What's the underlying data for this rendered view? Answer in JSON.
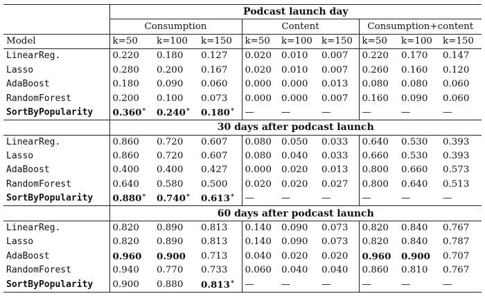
{
  "table": {
    "sections": [
      {
        "title": "Podcast launch day",
        "group_headers": [
          "Consumption",
          "Content",
          "Consumption+content"
        ],
        "model_header": "Model",
        "k_headers": [
          "k=50",
          "k=100",
          "k=150",
          "k=50",
          "k=100",
          "k=150",
          "k=50",
          "k=100",
          "k=150"
        ],
        "rows": [
          {
            "model": "LinearReg.",
            "bold_model": false,
            "cells": [
              {
                "v": "0.220"
              },
              {
                "v": "0.180"
              },
              {
                "v": "0.127"
              },
              {
                "v": "0.020"
              },
              {
                "v": "0.010"
              },
              {
                "v": "0.007"
              },
              {
                "v": "0.220"
              },
              {
                "v": "0.170"
              },
              {
                "v": "0.147"
              }
            ]
          },
          {
            "model": "Lasso",
            "bold_model": false,
            "cells": [
              {
                "v": "0.280"
              },
              {
                "v": "0.200"
              },
              {
                "v": "0.167"
              },
              {
                "v": "0.020"
              },
              {
                "v": "0.010"
              },
              {
                "v": "0.007"
              },
              {
                "v": "0.260"
              },
              {
                "v": "0.160"
              },
              {
                "v": "0.120"
              }
            ]
          },
          {
            "model": "AdaBoost",
            "bold_model": false,
            "cells": [
              {
                "v": "0.180"
              },
              {
                "v": "0.090"
              },
              {
                "v": "0.060"
              },
              {
                "v": "0.000"
              },
              {
                "v": "0.000"
              },
              {
                "v": "0.013"
              },
              {
                "v": "0.080"
              },
              {
                "v": "0.080"
              },
              {
                "v": "0.060"
              }
            ]
          },
          {
            "model": "RandomForest",
            "bold_model": false,
            "cells": [
              {
                "v": "0.200"
              },
              {
                "v": "0.100"
              },
              {
                "v": "0.073"
              },
              {
                "v": "0.000"
              },
              {
                "v": "0.000"
              },
              {
                "v": "0.007"
              },
              {
                "v": "0.160"
              },
              {
                "v": "0.090"
              },
              {
                "v": "0.060"
              }
            ]
          },
          {
            "model": "SortByPopularity",
            "bold_model": true,
            "cells": [
              {
                "v": "0.360",
                "b": true,
                "s": "*"
              },
              {
                "v": "0.240",
                "b": true,
                "s": "*"
              },
              {
                "v": "0.180",
                "b": true,
                "s": "*"
              },
              {
                "v": "—"
              },
              {
                "v": "—"
              },
              {
                "v": "—"
              },
              {
                "v": "—"
              },
              {
                "v": "—"
              },
              {
                "v": "—"
              }
            ]
          }
        ]
      },
      {
        "title": "30 days after podcast launch",
        "rows": [
          {
            "model": "LinearReg.",
            "bold_model": false,
            "cells": [
              {
                "v": "0.860"
              },
              {
                "v": "0.720"
              },
              {
                "v": "0.607"
              },
              {
                "v": "0.080"
              },
              {
                "v": "0.050"
              },
              {
                "v": "0.033"
              },
              {
                "v": "0.640"
              },
              {
                "v": "0.530"
              },
              {
                "v": "0.393"
              }
            ]
          },
          {
            "model": "Lasso",
            "bold_model": false,
            "cells": [
              {
                "v": "0.860"
              },
              {
                "v": "0.720"
              },
              {
                "v": "0.607"
              },
              {
                "v": "0.080"
              },
              {
                "v": "0.040"
              },
              {
                "v": "0.033"
              },
              {
                "v": "0.660"
              },
              {
                "v": "0.530"
              },
              {
                "v": "0.393"
              }
            ]
          },
          {
            "model": "AdaBoost",
            "bold_model": false,
            "cells": [
              {
                "v": "0.400"
              },
              {
                "v": "0.400"
              },
              {
                "v": "0.427"
              },
              {
                "v": "0.000"
              },
              {
                "v": "0.020"
              },
              {
                "v": "0.013"
              },
              {
                "v": "0.800"
              },
              {
                "v": "0.660"
              },
              {
                "v": "0.573"
              }
            ]
          },
          {
            "model": "RandomForest",
            "bold_model": false,
            "cells": [
              {
                "v": "0.640"
              },
              {
                "v": "0.580"
              },
              {
                "v": "0.500"
              },
              {
                "v": "0.020"
              },
              {
                "v": "0.020"
              },
              {
                "v": "0.027"
              },
              {
                "v": "0.800"
              },
              {
                "v": "0.640"
              },
              {
                "v": "0.513"
              }
            ]
          },
          {
            "model": "SortByPopularity",
            "bold_model": true,
            "cells": [
              {
                "v": "0.880",
                "b": true,
                "s": "*"
              },
              {
                "v": "0.740",
                "b": true,
                "s": "*"
              },
              {
                "v": "0.613",
                "b": true,
                "s": "*"
              },
              {
                "v": "—"
              },
              {
                "v": "—"
              },
              {
                "v": "—"
              },
              {
                "v": "—"
              },
              {
                "v": "—"
              },
              {
                "v": "—"
              }
            ]
          }
        ]
      },
      {
        "title": "60 days after podcast launch",
        "rows": [
          {
            "model": "LinearReg.",
            "bold_model": false,
            "cells": [
              {
                "v": "0.820"
              },
              {
                "v": "0.890"
              },
              {
                "v": "0.813"
              },
              {
                "v": "0.140"
              },
              {
                "v": "0.090"
              },
              {
                "v": "0.073"
              },
              {
                "v": "0.820"
              },
              {
                "v": "0.840"
              },
              {
                "v": "0.767"
              }
            ]
          },
          {
            "model": "Lasso",
            "bold_model": false,
            "cells": [
              {
                "v": "0.820"
              },
              {
                "v": "0.890"
              },
              {
                "v": "0.813"
              },
              {
                "v": "0.140"
              },
              {
                "v": "0.090"
              },
              {
                "v": "0.073"
              },
              {
                "v": "0.820"
              },
              {
                "v": "0.840"
              },
              {
                "v": "0.787"
              }
            ]
          },
          {
            "model": "AdaBoost",
            "bold_model": false,
            "cells": [
              {
                "v": "0.960",
                "b": true
              },
              {
                "v": "0.900",
                "b": true
              },
              {
                "v": "0.713"
              },
              {
                "v": "0.040"
              },
              {
                "v": "0.020"
              },
              {
                "v": "0.020"
              },
              {
                "v": "0.960",
                "b": true
              },
              {
                "v": "0.900",
                "b": true
              },
              {
                "v": "0.707"
              }
            ]
          },
          {
            "model": "RandomForest",
            "bold_model": false,
            "cells": [
              {
                "v": "0.940"
              },
              {
                "v": "0.770"
              },
              {
                "v": "0.733"
              },
              {
                "v": "0.060"
              },
              {
                "v": "0.040"
              },
              {
                "v": "0.040"
              },
              {
                "v": "0.860"
              },
              {
                "v": "0.810"
              },
              {
                "v": "0.767"
              }
            ]
          },
          {
            "model": "SortByPopularity",
            "bold_model": true,
            "cells": [
              {
                "v": "0.900"
              },
              {
                "v": "0.880"
              },
              {
                "v": "0.813",
                "b": true,
                "s": "*"
              },
              {
                "v": "—"
              },
              {
                "v": "—"
              },
              {
                "v": "—"
              },
              {
                "v": "—"
              },
              {
                "v": "—"
              },
              {
                "v": "—"
              }
            ]
          }
        ]
      }
    ]
  }
}
